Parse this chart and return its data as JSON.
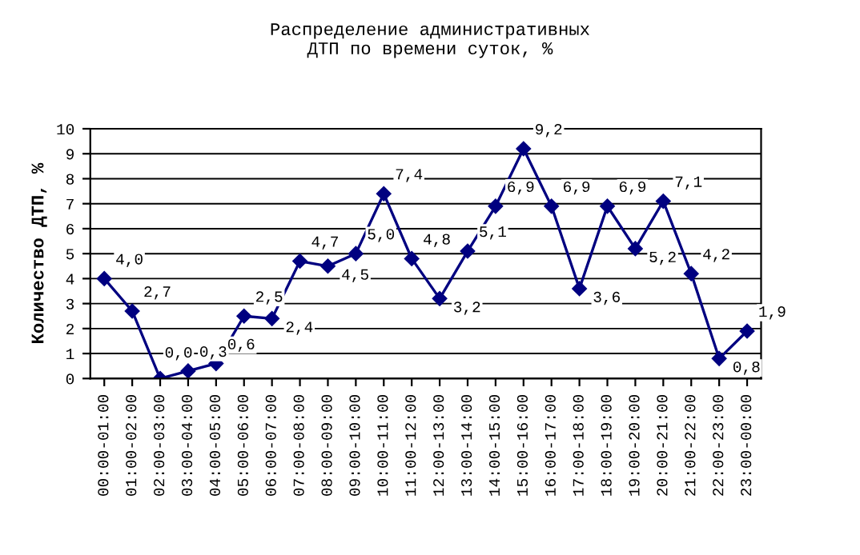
{
  "chart_data": {
    "type": "line",
    "title": "Распределение административных\nДТП по времени суток, %",
    "ylabel": "Количество ДТП, %",
    "categories": [
      "00:00-01:00",
      "01:00-02:00",
      "02:00-03:00",
      "03:00-04:00",
      "04:00-05:00",
      "05:00-06:00",
      "06:00-07:00",
      "07:00-08:00",
      "08:00-09:00",
      "09:00-10:00",
      "10:00-11:00",
      "11:00-12:00",
      "12:00-13:00",
      "13:00-14:00",
      "14:00-15:00",
      "15:00-16:00",
      "16:00-17:00",
      "17:00-18:00",
      "18:00-19:00",
      "19:00-20:00",
      "20:00-21:00",
      "21:00-22:00",
      "22:00-23:00",
      "23:00-00:00"
    ],
    "series": [
      {
        "color": "#000080",
        "values": [
          4.0,
          2.7,
          0.0,
          0.3,
          0.6,
          2.5,
          2.4,
          4.7,
          4.5,
          5.0,
          7.4,
          4.8,
          3.2,
          5.1,
          6.9,
          9.2,
          6.9,
          3.6,
          6.9,
          5.2,
          7.1,
          4.2,
          0.8,
          1.9
        ],
        "value_labels": [
          "4,0",
          "2,7",
          "0,0",
          "0,3",
          "0,6",
          "2,5",
          "2,4",
          "4,7",
          "4,5",
          "5,0",
          "7,4",
          "4,8",
          "3,2",
          "5,1",
          "6,9",
          "9,2",
          "6,9",
          "3,6",
          "6,9",
          "5,2",
          "7,1",
          "4,2",
          "0,8",
          "1,9"
        ]
      }
    ],
    "ylim": [
      0,
      10
    ],
    "yticks": [
      0,
      1,
      2,
      3,
      4,
      5,
      6,
      7,
      8,
      9,
      10
    ],
    "grid": "y",
    "marker": "diamond",
    "line_style": "solid",
    "legend": false
  }
}
